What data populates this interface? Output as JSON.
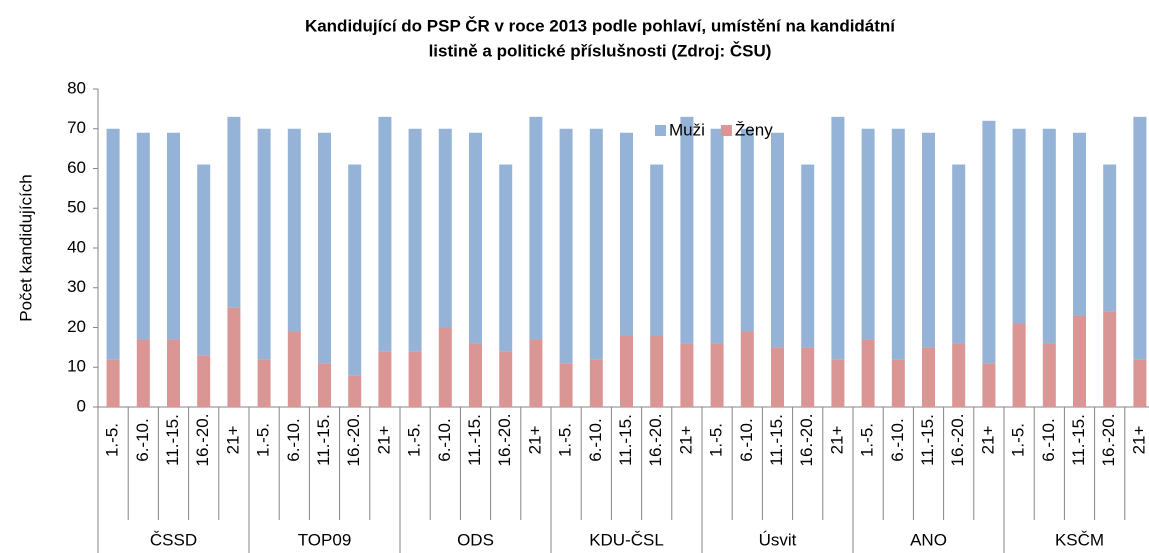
{
  "chart_data": {
    "type": "stacked_bar",
    "title": [
      "Kandidující do PSP ČR v roce 2013 podle pohlaví, umístění na kandidátní",
      "listině a politické příslušnosti (Zdroj: ČSU)"
    ],
    "y_label": "Počet kandidujících",
    "groups": [
      "ČSSD",
      "TOP09",
      "ODS",
      "KDU-ČSL",
      "Úsvit",
      "ANO",
      "KSČM"
    ],
    "categories": [
      "1.-5.",
      "6.-10.",
      "11.-15.",
      "16.-20.",
      "21+",
      "1.-5.",
      "6.-10.",
      "11.-15.",
      "16.-20.",
      "21+",
      "1.-5.",
      "6.-10.",
      "11.-15.",
      "16.-20.",
      "21+",
      "1.-5.",
      "6.-10.",
      "11.-15.",
      "16.-20.",
      "21+",
      "1.-5.",
      "6.-10.",
      "11.-15.",
      "16.-20.",
      "21+",
      "1.-5.",
      "6.-10.",
      "11.-15.",
      "16.-20.",
      "21+",
      "1.-5.",
      "6.-10.",
      "11.-15.",
      "16.-20.",
      "21+"
    ],
    "series": [
      {
        "name": "Ženy",
        "color": "#d99694",
        "values": [
          12,
          17,
          17,
          13,
          25,
          12,
          19,
          11,
          8,
          14,
          14,
          20,
          16,
          14,
          17,
          11,
          12,
          18,
          18,
          16,
          16,
          19,
          15,
          15,
          12,
          17,
          12,
          15,
          16,
          11,
          21,
          16,
          23,
          24,
          12
        ]
      },
      {
        "name": "Muži",
        "color": "#95b3d7",
        "values": [
          58,
          52,
          52,
          48,
          48,
          58,
          51,
          58,
          53,
          59,
          56,
          50,
          53,
          47,
          56,
          59,
          58,
          51,
          43,
          57,
          54,
          51,
          54,
          46,
          61,
          53,
          58,
          54,
          45,
          61,
          49,
          54,
          46,
          37,
          61
        ]
      }
    ],
    "legend_order": [
      1,
      0
    ],
    "ylim": [
      0,
      80
    ],
    "yticks": [
      0,
      10,
      20,
      30,
      40,
      50,
      60,
      70,
      80
    ],
    "grid": false
  }
}
